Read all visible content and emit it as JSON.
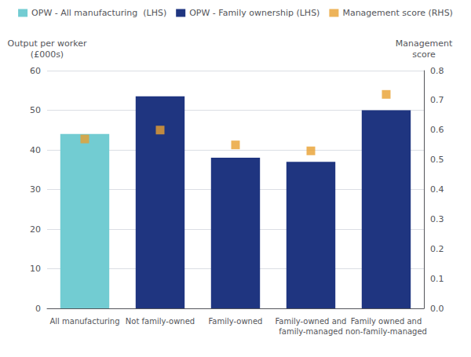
{
  "chart_data": {
    "type": "bar",
    "categories": [
      "All manufacturing",
      "Not family-owned",
      "Family-owned",
      "Family-owned and\nfamily-managed",
      "Family owned and\nnon-family-managed"
    ],
    "ylabel": "Output per worker\n(£000s)",
    "y2label": "Management\nscore",
    "ylim": [
      0,
      60
    ],
    "yticks": [
      0,
      10,
      20,
      30,
      40,
      50,
      60
    ],
    "y2lim": [
      0,
      0.8
    ],
    "y2ticks": [
      {
        "value": 0,
        "label": "0.0"
      },
      0.1,
      0.2,
      0.3,
      0.4,
      0.5,
      0.6,
      0.7,
      0.8
    ],
    "grid": true,
    "legend": "top",
    "series": [
      {
        "name": "OPW - All manufacturing  (LHS)",
        "type": "bar",
        "color": "#72ccd2",
        "values": [
          44,
          null,
          null,
          null,
          null
        ]
      },
      {
        "name": "OPW - Family ownership (LHS)",
        "type": "bar",
        "color": "#1f3580",
        "values": [
          null,
          53.5,
          38,
          37,
          50
        ]
      },
      {
        "name": "Management score (RHS)",
        "type": "scatter",
        "axis": "y2",
        "marker": "square",
        "color": "#e8a030",
        "values": [
          0.57,
          0.6,
          0.55,
          0.53,
          0.72
        ]
      }
    ]
  }
}
